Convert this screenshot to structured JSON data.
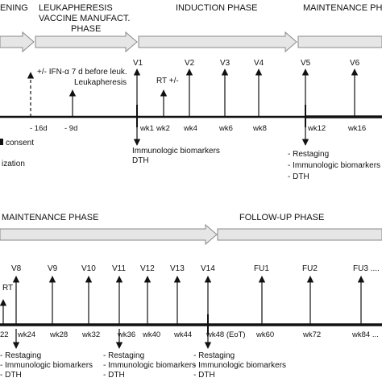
{
  "colors": {
    "line": "#111111",
    "phase_fill": "#e6e6e6",
    "phase_stroke": "#888888",
    "background": "#ffffff"
  },
  "top": {
    "phases": [
      "ENING",
      "LEUKAPHERESIS",
      "VACCINE MANUFACT.",
      "PHASE",
      "INDUCTION PHASE",
      "MAINTENANCE PHAS"
    ],
    "events": [
      "+/- IFN-α 7 d before leuk.",
      "Leukapheresis",
      "RT +/-"
    ],
    "visits": [
      "V1",
      "V2",
      "V3",
      "V4",
      "V5",
      "V6"
    ],
    "ticks": [
      "- 16d",
      "- 9d",
      "wk1",
      "wk2",
      "wk4",
      "wk6",
      "wk8",
      "wk12",
      "wk16"
    ],
    "left_notes": [
      "consent",
      "ization"
    ],
    "wk1_notes": [
      "Immunologic biomarkers",
      "DTH"
    ],
    "wk12_notes": [
      "- Restaging",
      "- Immunologic biomarkers",
      "- DTH"
    ]
  },
  "bottom": {
    "phases": [
      "MAINTENANCE PHASE",
      "FOLLOW-UP PHASE"
    ],
    "visits": [
      "V8",
      "V9",
      "V10",
      "V11",
      "V12",
      "V13",
      "V14",
      "FU1",
      "FU2",
      "FU3 ...."
    ],
    "rt_label": "RT",
    "ticks": [
      "22",
      "wk24",
      "wk28",
      "wk32",
      "wk36",
      "wk40",
      "wk44",
      "wk48 (EoT)",
      "wk60",
      "wk72",
      "wk84 ..."
    ],
    "notes_left": [
      "- Restaging",
      "- Immunologic biomarkers",
      "- DTH"
    ],
    "notes_mid": [
      "- Restaging",
      "- Immunologic biomarkers",
      "- DTH"
    ],
    "notes_right": [
      "- Restaging",
      "- Immunologic biomarkers",
      "- DTH"
    ]
  }
}
